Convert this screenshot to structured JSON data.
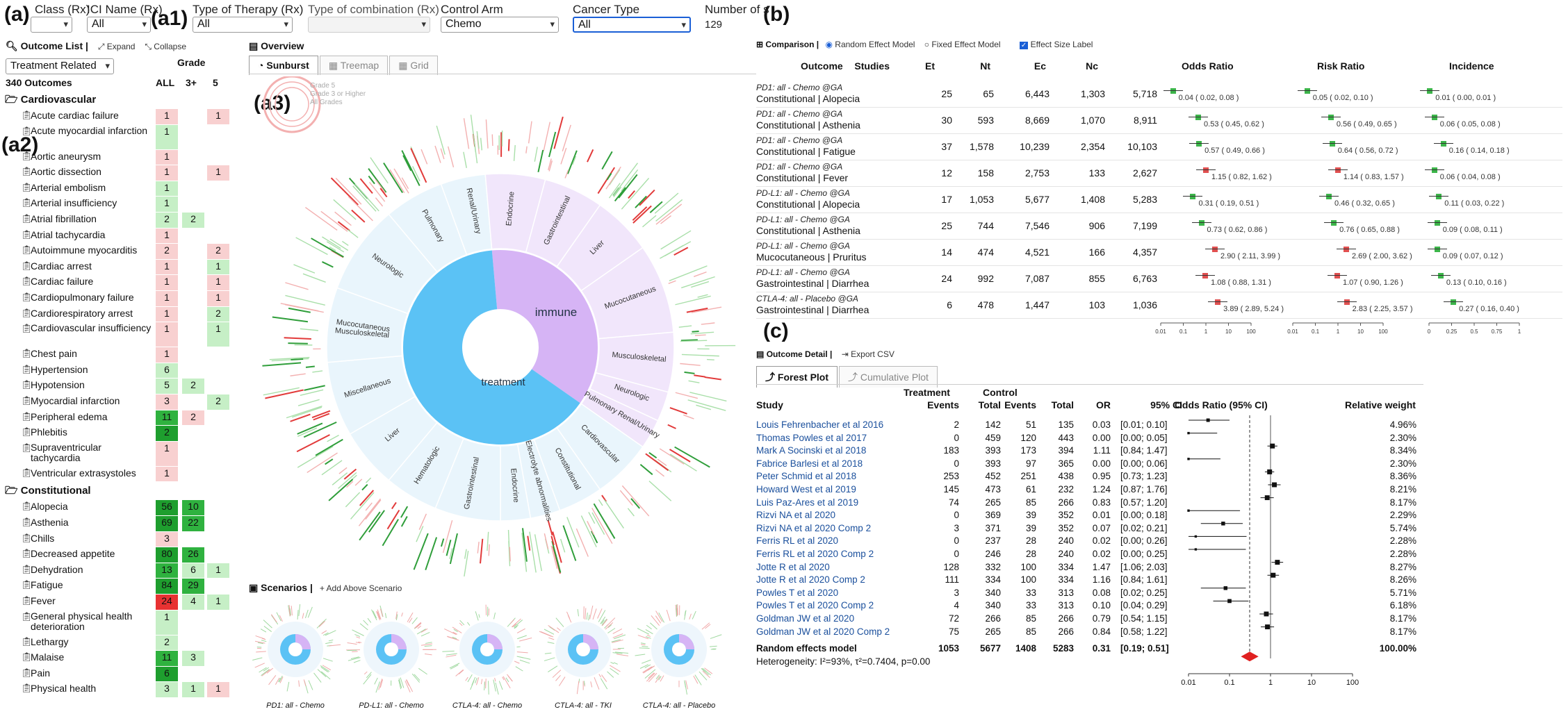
{
  "panel_labels": {
    "a": "(a)",
    "a1": "(a1)",
    "a2": "(a2)",
    "a3": "(a3)",
    "b": "(b)",
    "c": "(c)"
  },
  "filters": {
    "class_label": "Class (Rx)",
    "class_value": "",
    "ici_label": "ICI Name (Rx)",
    "ici_value": "All",
    "therapy_label": "Type of Therapy (Rx)",
    "therapy_value": "All",
    "combo_label": "Type of combination (Rx)",
    "combo_value": "",
    "control_label": "Control Arm",
    "control_value": "Chemo",
    "cancer_label": "Cancer Type",
    "cancer_value": "All",
    "number_label": "Number of s",
    "number_value": "129"
  },
  "outcome_list": {
    "title": "Outcome List |",
    "expand": "Expand",
    "collapse": "Collapse",
    "dropdown": "Treatment Related",
    "count": "340 Outcomes",
    "grade_header": "Grade",
    "col_all": "ALL",
    "col_3": "3+",
    "col_5": "5",
    "categories": [
      {
        "name": "Cardiovascular",
        "items": [
          {
            "name": "Acute cardiac failure",
            "all": "1",
            "g3": "",
            "g5": "1"
          },
          {
            "name": "Acute myocardial infarction",
            "all": "1",
            "g3": "",
            "g5": ""
          },
          {
            "name": "Aortic aneurysm",
            "all": "1",
            "g3": "",
            "g5": ""
          },
          {
            "name": "Aortic dissection",
            "all": "1",
            "g3": "",
            "g5": "1"
          },
          {
            "name": "Arterial embolism",
            "all": "1",
            "g3": "",
            "g5": ""
          },
          {
            "name": "Arterial insufficiency",
            "all": "1",
            "g3": "",
            "g5": ""
          },
          {
            "name": "Atrial fibrillation",
            "all": "2",
            "g3": "2",
            "g5": ""
          },
          {
            "name": "Atrial tachycardia",
            "all": "1",
            "g3": "",
            "g5": ""
          },
          {
            "name": "Autoimmune myocarditis",
            "all": "2",
            "g3": "",
            "g5": "2"
          },
          {
            "name": "Cardiac arrest",
            "all": "1",
            "g3": "",
            "g5": "1"
          },
          {
            "name": "Cardiac failure",
            "all": "1",
            "g3": "",
            "g5": "1"
          },
          {
            "name": "Cardiopulmonary failure",
            "all": "1",
            "g3": "",
            "g5": "1"
          },
          {
            "name": "Cardiorespiratory arrest",
            "all": "1",
            "g3": "",
            "g5": "2"
          },
          {
            "name": "Cardiovascular insufficiency",
            "all": "1",
            "g3": "",
            "g5": "1"
          },
          {
            "name": "Chest pain",
            "all": "1",
            "g3": "",
            "g5": ""
          },
          {
            "name": "Hypertension",
            "all": "6",
            "g3": "",
            "g5": ""
          },
          {
            "name": "Hypotension",
            "all": "5",
            "g3": "2",
            "g5": ""
          },
          {
            "name": "Myocardial infarction",
            "all": "3",
            "g3": "",
            "g5": "2"
          },
          {
            "name": "Peripheral edema",
            "all": "11",
            "g3": "2",
            "g5": ""
          },
          {
            "name": "Phlebitis",
            "all": "2",
            "g3": "",
            "g5": ""
          },
          {
            "name": "Supraventricular tachycardia",
            "all": "1",
            "g3": "",
            "g5": ""
          },
          {
            "name": "Ventricular extrasystoles",
            "all": "1",
            "g3": "",
            "g5": ""
          }
        ]
      },
      {
        "name": "Constitutional",
        "items": [
          {
            "name": "Alopecia",
            "all": "56",
            "g3": "10",
            "g5": ""
          },
          {
            "name": "Asthenia",
            "all": "69",
            "g3": "22",
            "g5": ""
          },
          {
            "name": "Chills",
            "all": "3",
            "g3": "",
            "g5": ""
          },
          {
            "name": "Decreased appetite",
            "all": "80",
            "g3": "26",
            "g5": ""
          },
          {
            "name": "Dehydration",
            "all": "13",
            "g3": "6",
            "g5": "1"
          },
          {
            "name": "Fatigue",
            "all": "84",
            "g3": "29",
            "g5": ""
          },
          {
            "name": "Fever",
            "all": "24",
            "g3": "4",
            "g5": "1"
          },
          {
            "name": "General physical health deterioration",
            "all": "1",
            "g3": "",
            "g5": ""
          },
          {
            "name": "Lethargy",
            "all": "2",
            "g3": "",
            "g5": ""
          },
          {
            "name": "Malaise",
            "all": "11",
            "g3": "3",
            "g5": ""
          },
          {
            "name": "Pain",
            "all": "6",
            "g3": "",
            "g5": ""
          },
          {
            "name": "Physical health",
            "all": "3",
            "g3": "1",
            "g5": "1"
          }
        ]
      }
    ]
  },
  "overview": {
    "title": "Overview",
    "tabs": [
      "Sunburst",
      "Treemap",
      "Grid"
    ],
    "legend": [
      "Grade 5",
      "Grade 3 or Higher",
      "All Grades"
    ],
    "inner": [
      "treatment",
      "immune"
    ],
    "segments": [
      "Neurologic",
      "Pulmonary",
      "Renal/Urinary",
      "Endocrine",
      "Gastrointestinal",
      "Liver",
      "Mucocutaneous",
      "Musculoskeletal",
      "Neurologic",
      "Pulmonary Renal/Urinary",
      "Cardiovascular",
      "Constitutional",
      "Electrolyte abnormalities",
      "Endocrine",
      "Gastrointestinal",
      "Hematologic",
      "Liver",
      "Miscellaneous",
      "Mucocutaneous",
      "Musculoskeletal"
    ]
  },
  "scenarios": {
    "title": "Scenarios |",
    "add": "Add Above Scenario",
    "items": [
      "PD1: all - Chemo",
      "PD-L1: all - Chemo",
      "CTLA-4: all - Chemo",
      "CTLA-4: all - TKI",
      "CTLA-4: all - Placebo"
    ]
  },
  "comparison": {
    "title": "Comparison |",
    "radio1": "Random Effect Model",
    "radio2": "Fixed Effect Model",
    "check": "Effect Size Label",
    "headers": [
      "Outcome",
      "Studies",
      "Et",
      "Nt",
      "Ec",
      "Nc",
      "Odds Ratio",
      "Risk Ratio",
      "Incidence"
    ],
    "rows": [
      {
        "group": "PD1: all - Chemo @GA",
        "outcome": "Constitutional | Alopecia",
        "studies": "25",
        "et": "65",
        "nt": "6,443",
        "ec": "1,303",
        "nc": "5,718",
        "or": "0.04 ( 0.02, 0.08 )",
        "rr": "0.05 ( 0.02, 0.10 )",
        "inc": "0.01 ( 0.00, 0.01 )",
        "orv": 0.04,
        "rrv": 0.05,
        "incv": 0.01
      },
      {
        "group": "PD1: all - Chemo @GA",
        "outcome": "Constitutional | Asthenia",
        "studies": "30",
        "et": "593",
        "nt": "8,669",
        "ec": "1,070",
        "nc": "8,911",
        "or": "0.53 ( 0.45, 0.62 )",
        "rr": "0.56 ( 0.49, 0.65 )",
        "inc": "0.06 ( 0.05, 0.08 )",
        "orv": 0.53,
        "rrv": 0.56,
        "incv": 0.06
      },
      {
        "group": "PD1: all - Chemo @GA",
        "outcome": "Constitutional | Fatigue",
        "studies": "37",
        "et": "1,578",
        "nt": "10,239",
        "ec": "2,354",
        "nc": "10,103",
        "or": "0.57 ( 0.49, 0.66 )",
        "rr": "0.64 ( 0.56, 0.72 )",
        "inc": "0.16 ( 0.14, 0.18 )",
        "orv": 0.57,
        "rrv": 0.64,
        "incv": 0.16
      },
      {
        "group": "PD1: all - Chemo @GA",
        "outcome": "Constitutional | Fever",
        "studies": "12",
        "et": "158",
        "nt": "2,753",
        "ec": "133",
        "nc": "2,627",
        "or": "1.15 ( 0.82, 1.62 )",
        "rr": "1.14 ( 0.83, 1.57 )",
        "inc": "0.06 ( 0.04, 0.08 )",
        "orv": 1.15,
        "rrv": 1.14,
        "incv": 0.06
      },
      {
        "group": "PD-L1: all - Chemo @GA",
        "outcome": "Constitutional | Alopecia",
        "studies": "17",
        "et": "1,053",
        "nt": "5,677",
        "ec": "1,408",
        "nc": "5,283",
        "or": "0.31 ( 0.19, 0.51 )",
        "rr": "0.46 ( 0.32, 0.65 )",
        "inc": "0.11 ( 0.03, 0.22 )",
        "orv": 0.31,
        "rrv": 0.46,
        "incv": 0.11
      },
      {
        "group": "PD-L1: all - Chemo @GA",
        "outcome": "Constitutional | Asthenia",
        "studies": "25",
        "et": "744",
        "nt": "7,546",
        "ec": "906",
        "nc": "7,199",
        "or": "0.73 ( 0.62, 0.86 )",
        "rr": "0.76 ( 0.65, 0.88 )",
        "inc": "0.09 ( 0.08, 0.11 )",
        "orv": 0.73,
        "rrv": 0.76,
        "incv": 0.09
      },
      {
        "group": "PD-L1: all - Chemo @GA",
        "outcome": "Mucocutaneous | Pruritus",
        "studies": "14",
        "et": "474",
        "nt": "4,521",
        "ec": "166",
        "nc": "4,357",
        "or": "2.90 ( 2.11, 3.99 )",
        "rr": "2.69 ( 2.00, 3.62 )",
        "inc": "0.09 ( 0.07, 0.12 )",
        "orv": 2.9,
        "rrv": 2.69,
        "incv": 0.09
      },
      {
        "group": "PD-L1: all - Chemo @GA",
        "outcome": "Gastrointestinal | Diarrhea",
        "studies": "24",
        "et": "992",
        "nt": "7,087",
        "ec": "855",
        "nc": "6,763",
        "or": "1.08 ( 0.88, 1.31 )",
        "rr": "1.07 ( 0.90, 1.26 )",
        "inc": "0.13 ( 0.10, 0.16 )",
        "orv": 1.08,
        "rrv": 1.07,
        "incv": 0.13
      },
      {
        "group": "CTLA-4: all - Placebo @GA",
        "outcome": "Gastrointestinal | Diarrhea",
        "studies": "6",
        "et": "478",
        "nt": "1,447",
        "ec": "103",
        "nc": "1,036",
        "or": "3.89 ( 2.89, 5.24 )",
        "rr": "2.83 ( 2.25, 3.57 )",
        "inc": "0.27 ( 0.16, 0.40 )",
        "orv": 3.89,
        "rrv": 2.83,
        "incv": 0.27
      }
    ],
    "or_ticks": [
      "0.01",
      "0.1",
      "1",
      "10",
      "100"
    ],
    "inc_ticks": [
      "0",
      "0.25",
      "0.5",
      "0.75",
      "1"
    ]
  },
  "detail": {
    "title": "Outcome Detail |",
    "export": "Export CSV",
    "tabs": [
      "Forest Plot",
      "Cumulative Plot"
    ],
    "head_treatment": "Treatment",
    "head_control": "Control",
    "cols": [
      "Study",
      "Events",
      "Total",
      "Events",
      "Total",
      "OR",
      "95% CI",
      "Odds Ratio (95% CI)",
      "Relative weight"
    ],
    "studies": [
      {
        "study": "Louis Fehrenbacher et al 2016",
        "te": "2",
        "tt": "142",
        "ce": "51",
        "ct": "135",
        "or": "0.03",
        "ci": "[0.01; 0.10]",
        "w": "4.96%",
        "orv": 0.03,
        "lo": 0.01,
        "hi": 0.1
      },
      {
        "study": "Thomas Powles et al 2017",
        "te": "0",
        "tt": "459",
        "ce": "120",
        "ct": "443",
        "or": "0.00",
        "ci": "[0.00; 0.05]",
        "w": "2.30%",
        "orv": 0.01,
        "lo": 0.01,
        "hi": 0.05
      },
      {
        "study": "Mark A Socinski et al 2018",
        "te": "183",
        "tt": "393",
        "ce": "173",
        "ct": "394",
        "or": "1.11",
        "ci": "[0.84; 1.47]",
        "w": "8.34%",
        "orv": 1.11,
        "lo": 0.84,
        "hi": 1.47
      },
      {
        "study": "Fabrice Barlesi et al 2018",
        "te": "0",
        "tt": "393",
        "ce": "97",
        "ct": "365",
        "or": "0.00",
        "ci": "[0.00; 0.06]",
        "w": "2.30%",
        "orv": 0.01,
        "lo": 0.01,
        "hi": 0.06
      },
      {
        "study": "Peter Schmid et al 2018",
        "te": "253",
        "tt": "452",
        "ce": "251",
        "ct": "438",
        "or": "0.95",
        "ci": "[0.73; 1.23]",
        "w": "8.36%",
        "orv": 0.95,
        "lo": 0.73,
        "hi": 1.23
      },
      {
        "study": "Howard West et al 2019",
        "te": "145",
        "tt": "473",
        "ce": "61",
        "ct": "232",
        "or": "1.24",
        "ci": "[0.87; 1.76]",
        "w": "8.21%",
        "orv": 1.24,
        "lo": 0.87,
        "hi": 1.76
      },
      {
        "study": "Luis Paz-Ares et al 2019",
        "te": "74",
        "tt": "265",
        "ce": "85",
        "ct": "266",
        "or": "0.83",
        "ci": "[0.57; 1.20]",
        "w": "8.17%",
        "orv": 0.83,
        "lo": 0.57,
        "hi": 1.2
      },
      {
        "study": "Rizvi NA et al 2020",
        "te": "0",
        "tt": "369",
        "ce": "39",
        "ct": "352",
        "or": "0.01",
        "ci": "[0.00; 0.18]",
        "w": "2.29%",
        "orv": 0.01,
        "lo": 0.01,
        "hi": 0.18
      },
      {
        "study": "Rizvi NA et al 2020 Comp 2",
        "te": "3",
        "tt": "371",
        "ce": "39",
        "ct": "352",
        "or": "0.07",
        "ci": "[0.02; 0.21]",
        "w": "5.74%",
        "orv": 0.07,
        "lo": 0.02,
        "hi": 0.21
      },
      {
        "study": "Ferris RL et al 2020",
        "te": "0",
        "tt": "237",
        "ce": "28",
        "ct": "240",
        "or": "0.02",
        "ci": "[0.00; 0.26]",
        "w": "2.28%",
        "orv": 0.015,
        "lo": 0.01,
        "hi": 0.26
      },
      {
        "study": "Ferris RL et al 2020 Comp 2",
        "te": "0",
        "tt": "246",
        "ce": "28",
        "ct": "240",
        "or": "0.02",
        "ci": "[0.00; 0.25]",
        "w": "2.28%",
        "orv": 0.015,
        "lo": 0.01,
        "hi": 0.25
      },
      {
        "study": "Jotte R et al 2020",
        "te": "128",
        "tt": "332",
        "ce": "100",
        "ct": "334",
        "or": "1.47",
        "ci": "[1.06; 2.03]",
        "w": "8.27%",
        "orv": 1.47,
        "lo": 1.06,
        "hi": 2.03
      },
      {
        "study": "Jotte R et al 2020 Comp 2",
        "te": "111",
        "tt": "334",
        "ce": "100",
        "ct": "334",
        "or": "1.16",
        "ci": "[0.84; 1.61]",
        "w": "8.26%",
        "orv": 1.16,
        "lo": 0.84,
        "hi": 1.61
      },
      {
        "study": "Powles T et al 2020",
        "te": "3",
        "tt": "340",
        "ce": "33",
        "ct": "313",
        "or": "0.08",
        "ci": "[0.02; 0.25]",
        "w": "5.71%",
        "orv": 0.08,
        "lo": 0.02,
        "hi": 0.25
      },
      {
        "study": "Powles T et al 2020 Comp 2",
        "te": "4",
        "tt": "340",
        "ce": "33",
        "ct": "313",
        "or": "0.10",
        "ci": "[0.04; 0.29]",
        "w": "6.18%",
        "orv": 0.1,
        "lo": 0.04,
        "hi": 0.29
      },
      {
        "study": "Goldman JW et al 2020",
        "te": "72",
        "tt": "266",
        "ce": "85",
        "ct": "266",
        "or": "0.79",
        "ci": "[0.54; 1.15]",
        "w": "8.17%",
        "orv": 0.79,
        "lo": 0.54,
        "hi": 1.15
      },
      {
        "study": "Goldman JW et al 2020 Comp 2",
        "te": "75",
        "tt": "265",
        "ce": "85",
        "ct": "266",
        "or": "0.84",
        "ci": "[0.58; 1.22]",
        "w": "8.17%",
        "orv": 0.84,
        "lo": 0.58,
        "hi": 1.22
      }
    ],
    "summary": {
      "label": "Random effects model",
      "te": "1053",
      "tt": "5677",
      "ce": "1408",
      "ct": "5283",
      "or": "0.31",
      "ci": "[0.19; 0.51]",
      "w": "100.00%",
      "orv": 0.31,
      "lo": 0.19,
      "hi": 0.51
    },
    "heterogeneity": "Heterogeneity: I²=93%, τ²=0.7404, p=0.00",
    "ticks": [
      "0.01",
      "0.1",
      "1",
      "10",
      "100"
    ]
  },
  "colors": {
    "green_dark": "#1e9e2e",
    "green_light": "#c6efc6",
    "red_dark": "#e83232",
    "red_light": "#f8d0d0",
    "sky": "#5bc2f5",
    "lilac": "#d6b4f5",
    "link": "#1a4f9c"
  }
}
